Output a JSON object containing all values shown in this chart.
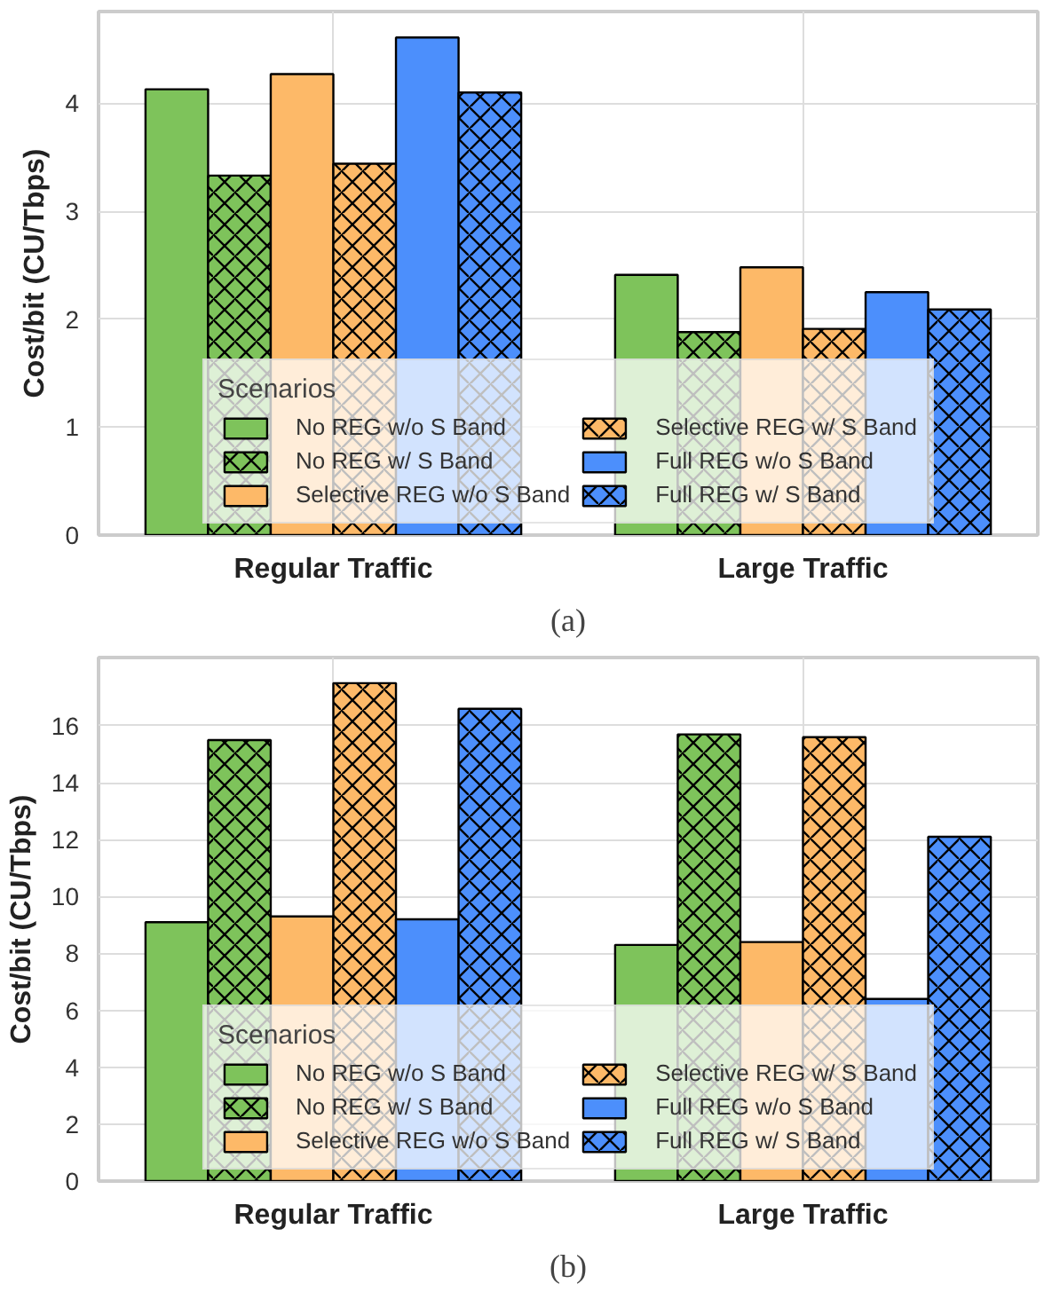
{
  "chart_data": [
    {
      "type": "bar",
      "categories": [
        "Regular Traffic",
        "Large Traffic"
      ],
      "ylabel": "Cost/bit (CU/Tbps)",
      "ylim": [
        0,
        4.85
      ],
      "yticks": [
        0,
        1,
        2,
        3,
        4
      ],
      "grid": true,
      "legend": "bottom",
      "legend_title": "Scenarios",
      "annotations": [
        "(a)"
      ],
      "series": [
        {
          "name": "No REG w/o S Band",
          "color": "#7ec35b",
          "values": [
            4.13,
            2.41
          ]
        },
        {
          "name": "No REG w/ S Band",
          "color": "#7ec35b",
          "values": [
            3.33,
            1.88
          ]
        },
        {
          "name": "Selective REG w/o S Band",
          "color": "#fdb968",
          "values": [
            4.27,
            2.48
          ]
        },
        {
          "name": "Selective REG w/ S Band",
          "color": "#fdb968",
          "values": [
            3.44,
            1.91
          ]
        },
        {
          "name": "Full REG w/o S Band",
          "color": "#4c8ffc",
          "values": [
            4.61,
            2.25
          ]
        },
        {
          "name": "Full REG w/ S Band",
          "color": "#4c8ffc",
          "values": [
            4.1,
            2.09
          ]
        }
      ]
    },
    {
      "type": "bar",
      "categories": [
        "Regular Traffic",
        "Large Traffic"
      ],
      "ylabel": "Cost/bit (CU/Tbps)",
      "ylim": [
        0,
        18.4
      ],
      "yticks": [
        0,
        2,
        4,
        6,
        8,
        10,
        12,
        14,
        16
      ],
      "grid": true,
      "legend": "bottom",
      "legend_title": "Scenarios",
      "annotations": [
        "(b)"
      ],
      "series": [
        {
          "name": "No REG w/o S Band",
          "color": "#7ec35b",
          "values": [
            9.1,
            8.3
          ]
        },
        {
          "name": "No REG w/ S Band",
          "color": "#7ec35b",
          "values": [
            15.5,
            15.7
          ]
        },
        {
          "name": "Selective REG w/o S Band",
          "color": "#fdb968",
          "values": [
            9.3,
            8.4
          ]
        },
        {
          "name": "Selective REG w/ S Band",
          "color": "#fdb968",
          "values": [
            17.5,
            15.6
          ]
        },
        {
          "name": "Full REG w/o S Band",
          "color": "#4c8ffc",
          "values": [
            9.2,
            6.4
          ]
        },
        {
          "name": "Full REG w/ S Band",
          "color": "#4c8ffc",
          "values": [
            16.6,
            12.1
          ]
        }
      ]
    }
  ]
}
